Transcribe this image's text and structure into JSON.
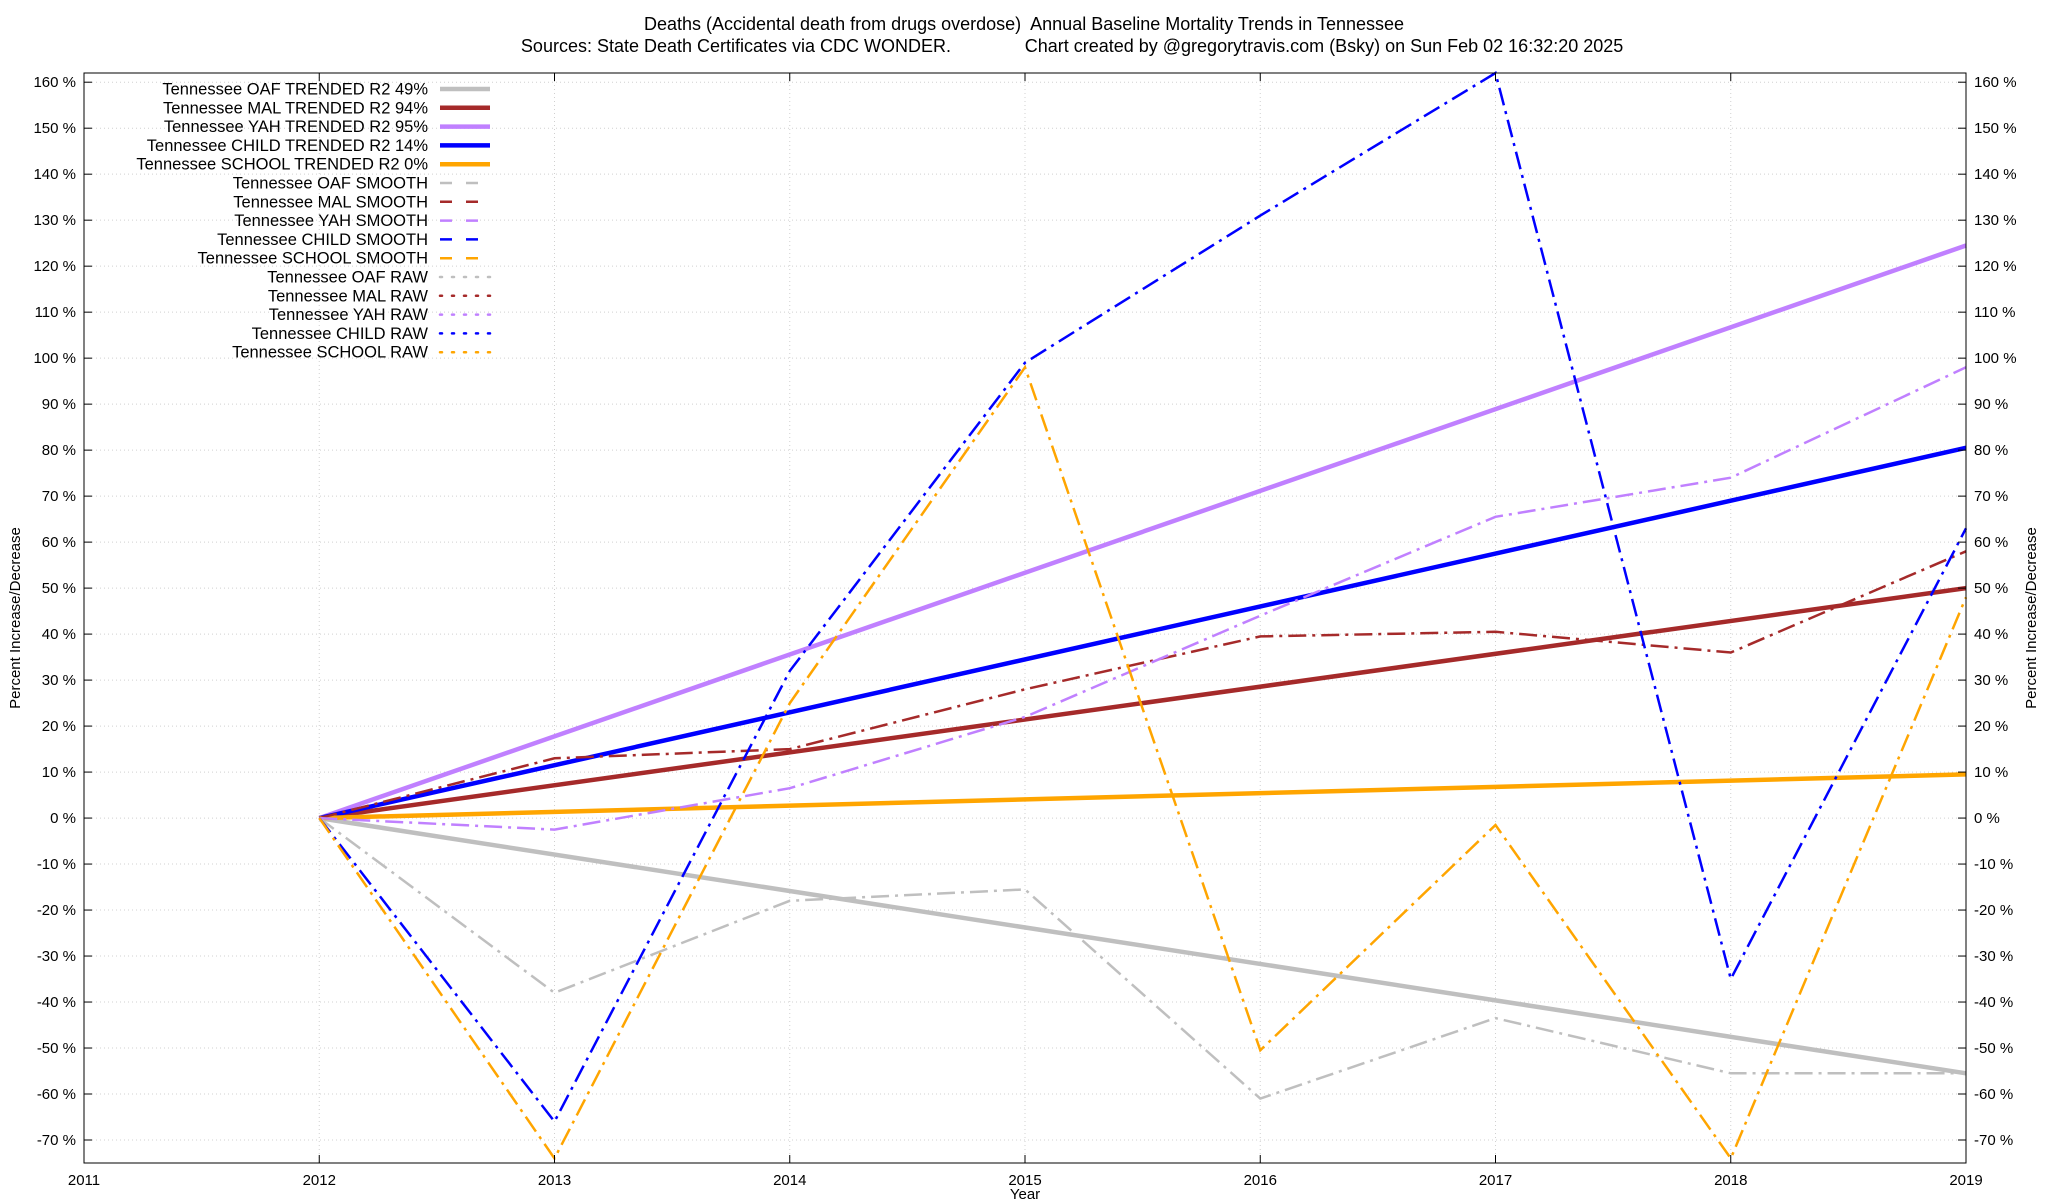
{
  "chart_data": {
    "type": "line",
    "title": "Deaths (Accidental death from drugs overdose)  Annual Baseline Mortality Trends in Tennessee",
    "subtitle_left": "Sources: State Death Certificates via CDC WONDER.",
    "subtitle_right": "Chart created by @gregorytravis.com (Bsky) on Sun Feb 02 16:32:20 2025",
    "xlabel": "Year",
    "ylabel": "Percent Increase/Decrease",
    "ylabel_right": "Percent Increase/Decrease",
    "xlim": [
      2011,
      2019
    ],
    "ylim": [
      -75,
      162
    ],
    "x_ticks": [
      "2011",
      "2012",
      "2013",
      "2014",
      "2015",
      "2016",
      "2017",
      "2018",
      "2019"
    ],
    "y_ticks": [
      160,
      150,
      140,
      130,
      120,
      110,
      100,
      90,
      80,
      70,
      60,
      50,
      40,
      30,
      20,
      10,
      0,
      -10,
      -20,
      -30,
      -40,
      -50,
      -60,
      -70
    ],
    "y_tick_suffix": " %",
    "grid": true,
    "legend_position": "top-left",
    "series": [
      {
        "name": "Tennessee OAF TRENDED R2  49%",
        "style": "trend",
        "color": "#bfbfbf",
        "x": [
          2012,
          2019
        ],
        "values": [
          0,
          -55.5
        ]
      },
      {
        "name": "Tennessee MAL TRENDED R2  94%",
        "style": "trend",
        "color": "#a52a2a",
        "x": [
          2012,
          2019
        ],
        "values": [
          0,
          50
        ]
      },
      {
        "name": "Tennessee YAH TRENDED R2  95%",
        "style": "trend",
        "color": "#c080ff",
        "x": [
          2012,
          2019
        ],
        "values": [
          0,
          124.5
        ]
      },
      {
        "name": "Tennessee CHILD TRENDED R2  14%",
        "style": "trend",
        "color": "#0000ff",
        "x": [
          2012,
          2019
        ],
        "values": [
          0,
          80.5
        ]
      },
      {
        "name": "Tennessee SCHOOL TRENDED R2   0%",
        "style": "trend",
        "color": "#ffa500",
        "x": [
          2012,
          2019
        ],
        "values": [
          0,
          9.5
        ]
      },
      {
        "name": "Tennessee OAF SMOOTH",
        "style": "smooth",
        "color": "#bfbfbf",
        "x": [
          2012,
          2013,
          2014,
          2015,
          2016,
          2017,
          2018,
          2019
        ],
        "values": [
          0,
          -38,
          -18,
          -15.5,
          -61,
          -43.5,
          -55.5,
          -55.5
        ]
      },
      {
        "name": "Tennessee MAL SMOOTH",
        "style": "smooth",
        "color": "#a52a2a",
        "x": [
          2012,
          2013,
          2014,
          2015,
          2016,
          2017,
          2018,
          2019
        ],
        "values": [
          0,
          13,
          15,
          28,
          39.5,
          40.5,
          36,
          58
        ]
      },
      {
        "name": "Tennessee YAH SMOOTH",
        "style": "smooth",
        "color": "#c080ff",
        "x": [
          2012,
          2013,
          2014,
          2015,
          2016,
          2017,
          2018,
          2019
        ],
        "values": [
          0,
          -2.5,
          6.5,
          22,
          44,
          65.5,
          74,
          98
        ]
      },
      {
        "name": "Tennessee CHILD SMOOTH",
        "style": "smooth",
        "color": "#0000ff",
        "x": [
          2012,
          2013,
          2014,
          2015,
          2016,
          2017,
          2018,
          2019
        ],
        "values": [
          0,
          -66,
          32,
          99,
          131,
          162,
          -35,
          63
        ]
      },
      {
        "name": "Tennessee SCHOOL SMOOTH",
        "style": "smooth",
        "color": "#ffa500",
        "x": [
          2012,
          2013,
          2014,
          2015,
          2016,
          2017,
          2018,
          2019
        ],
        "values": [
          0,
          -74,
          25,
          98,
          -50.5,
          -1.5,
          -74,
          48
        ]
      },
      {
        "name": "Tennessee OAF RAW",
        "style": "raw",
        "color": "#bfbfbf",
        "x": [],
        "values": []
      },
      {
        "name": "Tennessee MAL RAW",
        "style": "raw",
        "color": "#a52a2a",
        "x": [],
        "values": []
      },
      {
        "name": "Tennessee YAH RAW",
        "style": "raw",
        "color": "#c080ff",
        "x": [],
        "values": []
      },
      {
        "name": "Tennessee CHILD RAW",
        "style": "raw",
        "color": "#0000ff",
        "x": [],
        "values": []
      },
      {
        "name": "Tennessee SCHOOL RAW",
        "style": "raw",
        "color": "#ffa500",
        "x": [],
        "values": []
      }
    ]
  }
}
